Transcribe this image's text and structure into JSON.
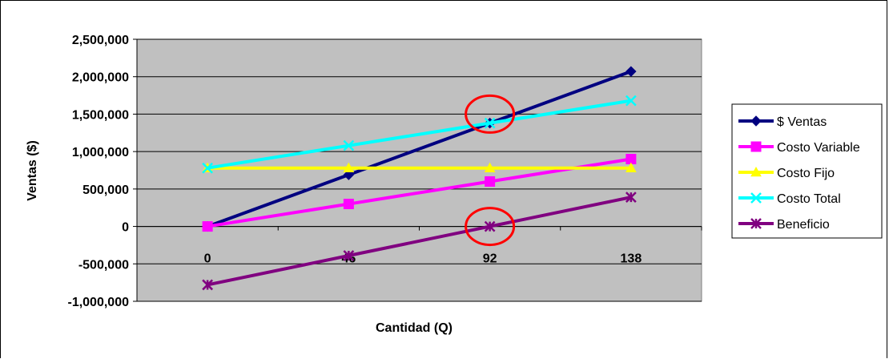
{
  "chart_data": {
    "type": "line",
    "xlabel": "Cantidad (Q)",
    "ylabel": "Ventas ($)",
    "categories": [
      "0",
      "46",
      "92",
      "138"
    ],
    "y_ticks": [
      -1000000,
      -500000,
      0,
      500000,
      1000000,
      1500000,
      2000000,
      2500000
    ],
    "y_tick_labels": [
      "-1,000,000",
      "-500,000",
      "0",
      "500,000",
      "1,000,000",
      "1,500,000",
      "2,000,000",
      "2,500,000"
    ],
    "ylim": [
      -1000000,
      2500000
    ],
    "grid": "horizontal",
    "legend_position": "right",
    "series": [
      {
        "name": "$ Ventas",
        "values": [
          0,
          690000,
          1380000,
          2070000
        ],
        "color": "#000080",
        "marker": "diamond"
      },
      {
        "name": "Costo Variable",
        "values": [
          0,
          300000,
          600000,
          900000
        ],
        "color": "#ff00ff",
        "marker": "square"
      },
      {
        "name": "Costo Fijo",
        "values": [
          780000,
          780000,
          780000,
          780000
        ],
        "color": "#ffff00",
        "marker": "triangle"
      },
      {
        "name": "Costo Total",
        "values": [
          780000,
          1080000,
          1380000,
          1680000
        ],
        "color": "#00ffff",
        "marker": "x"
      },
      {
        "name": "Beneficio",
        "values": [
          -780000,
          -390000,
          0,
          390000
        ],
        "color": "#800080",
        "marker": "star"
      }
    ],
    "annotations": [
      {
        "type": "circle",
        "category": "92",
        "value": 1500000,
        "color": "#ff0000"
      },
      {
        "type": "circle",
        "category": "92",
        "value": 0,
        "color": "#ff0000"
      }
    ],
    "plot_background": "#c0c0c0"
  }
}
